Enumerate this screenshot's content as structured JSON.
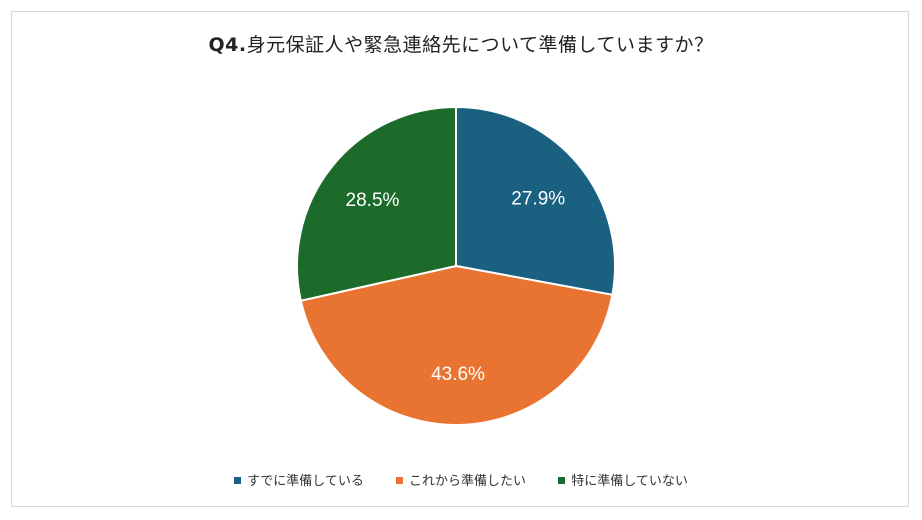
{
  "chart_data": {
    "type": "pie",
    "title_prefix": "Q4.",
    "title_text": "身元保証人や緊急連絡先について準備していますか？",
    "categories": [
      "すでに準備している",
      "これから準備したい",
      "特に準備していない"
    ],
    "values": [
      27.9,
      43.6,
      28.5
    ],
    "labels": [
      "27.9%",
      "43.6%",
      "28.5%"
    ],
    "colors": [
      "#1a6081",
      "#e97431",
      "#1c6b2a"
    ],
    "legend_position": "bottom"
  }
}
